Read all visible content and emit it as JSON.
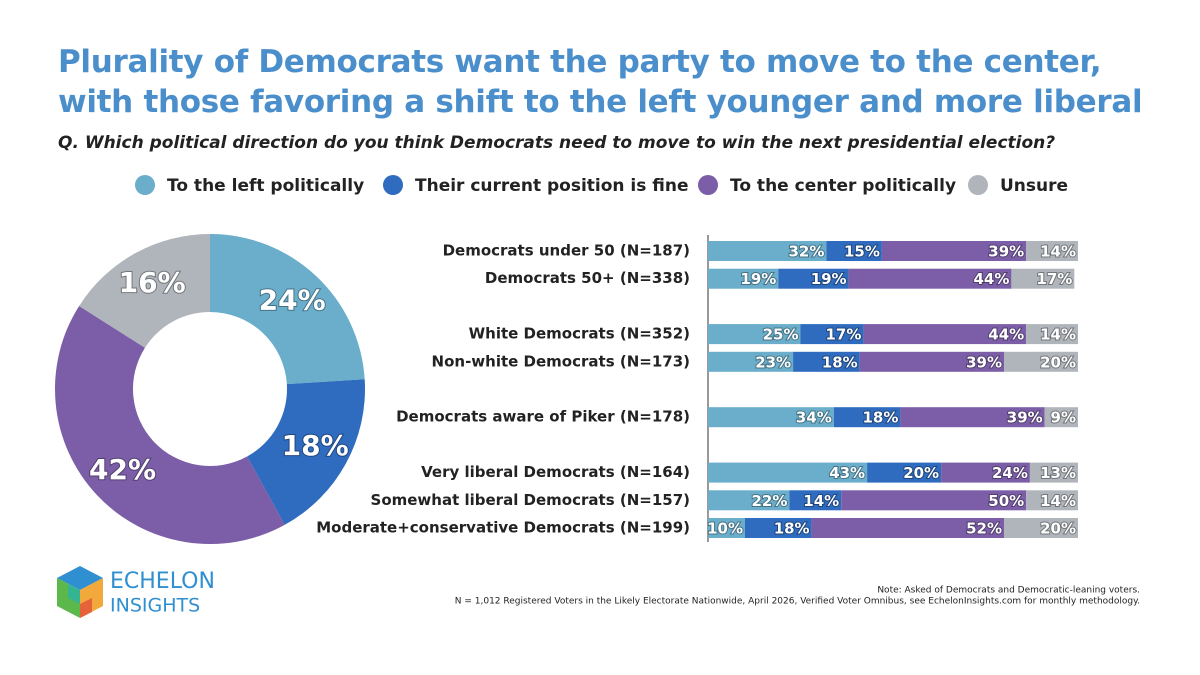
{
  "header": {
    "title": "Plurality of Democrats want the party to move to the center,\nwith those favoring a shift to the left younger and more liberal",
    "question": "Q. Which political direction do you think Democrats need to move to win the next presidential election?"
  },
  "chart_data": [
    {
      "type": "donut",
      "values": [
        24,
        18,
        42,
        16
      ],
      "value_labels": [
        "24%",
        "18%",
        "42%",
        "16%"
      ],
      "colors": [
        "#6aaecb",
        "#2f6bbf",
        "#7b5ea7",
        "#b0b5bb"
      ]
    },
    {
      "type": "stacked-bar-horizontal",
      "categories": [
        "Democrats under 50 (N=187)",
        "Democrats 50+ (N=338)",
        null,
        "White Democrats (N=352)",
        "Non-white Democrats (N=173)",
        null,
        "Democrats aware of Piker (N=178)",
        null,
        "Very liberal Democrats (N=164)",
        "Somewhat liberal Democrats (N=157)",
        "Moderate+conservative Democrats (N=199)"
      ],
      "xlim": [
        0,
        100
      ],
      "series": [
        {
          "name": "To the left politically",
          "color": "#6aaecb",
          "values": [
            32,
            19,
            null,
            25,
            23,
            null,
            34,
            null,
            43,
            22,
            10
          ],
          "value_labels": [
            "32%",
            "19%",
            null,
            "25%",
            "23%",
            null,
            "34%",
            null,
            "43%",
            "22%",
            "10%"
          ]
        },
        {
          "name": "Their current position is fine",
          "color": "#2f6bbf",
          "values": [
            15,
            19,
            null,
            17,
            18,
            null,
            18,
            null,
            20,
            14,
            18
          ],
          "value_labels": [
            "15%",
            "19%",
            null,
            "17%",
            "18%",
            null,
            "18%",
            null,
            "20%",
            "14%",
            "18%"
          ]
        },
        {
          "name": "To the center politically",
          "color": "#7b5ea7",
          "values": [
            39,
            44,
            null,
            44,
            39,
            null,
            39,
            null,
            24,
            50,
            52
          ],
          "value_labels": [
            "39%",
            "44%",
            null,
            "44%",
            "39%",
            null,
            "39%",
            null,
            "24%",
            "50%",
            "52%"
          ]
        },
        {
          "name": "Unsure",
          "color": "#b0b5bb",
          "values": [
            14,
            17,
            null,
            14,
            20,
            null,
            9,
            null,
            13,
            14,
            20
          ],
          "value_labels": [
            "14%",
            "17%",
            null,
            "14%",
            "20%",
            null,
            "9%",
            null,
            "13%",
            "14%",
            "20%"
          ]
        }
      ]
    }
  ],
  "notes": [
    "Note: Asked of Democrats and Democratic-leaning voters.",
    "N = 1,012 Registered Voters in the Likely Electorate Nationwide, April 2026, Verified Voter Omnibus, see EchelonInsights.com for monthly methodology."
  ],
  "logo": {
    "line1": "ECHELON",
    "line2": "INSIGHTS"
  }
}
